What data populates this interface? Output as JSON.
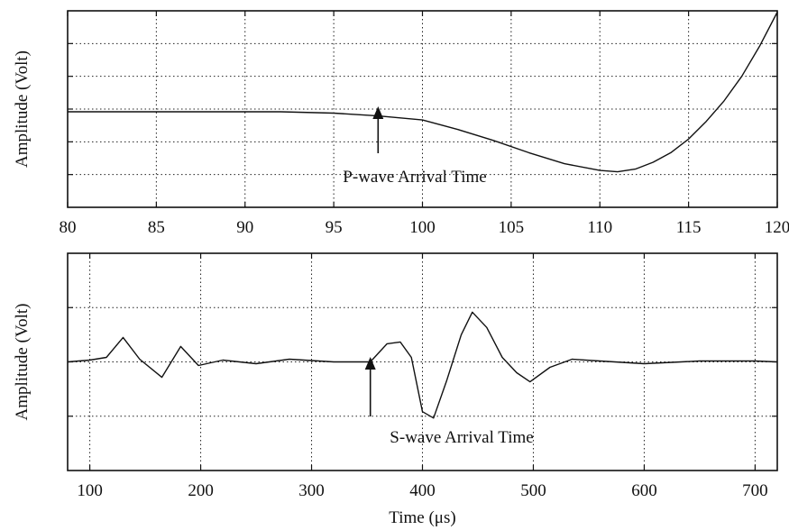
{
  "chart_data": [
    {
      "type": "line",
      "title": "",
      "xlabel": "",
      "ylabel": "Amplitude  (Volt)",
      "xlim": [
        80,
        120
      ],
      "xticks": [
        "80",
        "85",
        "90",
        "95",
        "100",
        "105",
        "110",
        "115",
        "120"
      ],
      "yticks_count": 6,
      "grid": true,
      "series": [
        {
          "x": [
            80,
            84,
            88,
            92,
            95,
            97.5,
            100,
            102,
            104,
            106,
            108,
            110,
            111,
            112,
            113,
            114,
            115,
            116,
            117,
            118,
            119,
            120
          ],
          "y": [
            0.3,
            0.3,
            0.3,
            0.3,
            0.25,
            0.15,
            0.0,
            -0.35,
            -0.75,
            -1.2,
            -1.6,
            -1.85,
            -1.9,
            -1.8,
            -1.55,
            -1.2,
            -0.7,
            -0.05,
            0.7,
            1.6,
            2.7,
            3.95
          ]
        }
      ],
      "annotation": {
        "text": "P-wave Arrival Time",
        "x": 97.5
      }
    },
    {
      "type": "line",
      "title": "",
      "xlabel": "Time (μs)",
      "ylabel": "Amplitude (Volt)",
      "xlim": [
        80,
        720
      ],
      "xticks": [
        "100",
        "200",
        "300",
        "400",
        "500",
        "600",
        "700"
      ],
      "yticks_count": 4,
      "grid": true,
      "series": [
        {
          "x": [
            80,
            100,
            115,
            130,
            145,
            165,
            182,
            198,
            220,
            250,
            280,
            320,
            353,
            368,
            380,
            390,
            400,
            410,
            422,
            435,
            445,
            458,
            472,
            485,
            497,
            515,
            535,
            560,
            600,
            650,
            700,
            720
          ],
          "y": [
            0,
            0.02,
            0.05,
            0.27,
            0.03,
            -0.17,
            0.17,
            -0.04,
            0.02,
            -0.02,
            0.03,
            0,
            0,
            0.2,
            0.22,
            0.05,
            -0.55,
            -0.62,
            -0.2,
            0.3,
            0.55,
            0.38,
            0.05,
            -0.12,
            -0.22,
            -0.06,
            0.03,
            0.01,
            -0.02,
            0.01,
            0.01,
            0
          ]
        }
      ],
      "annotation": {
        "text": "S-wave Arrival Time",
        "x": 353
      }
    }
  ]
}
